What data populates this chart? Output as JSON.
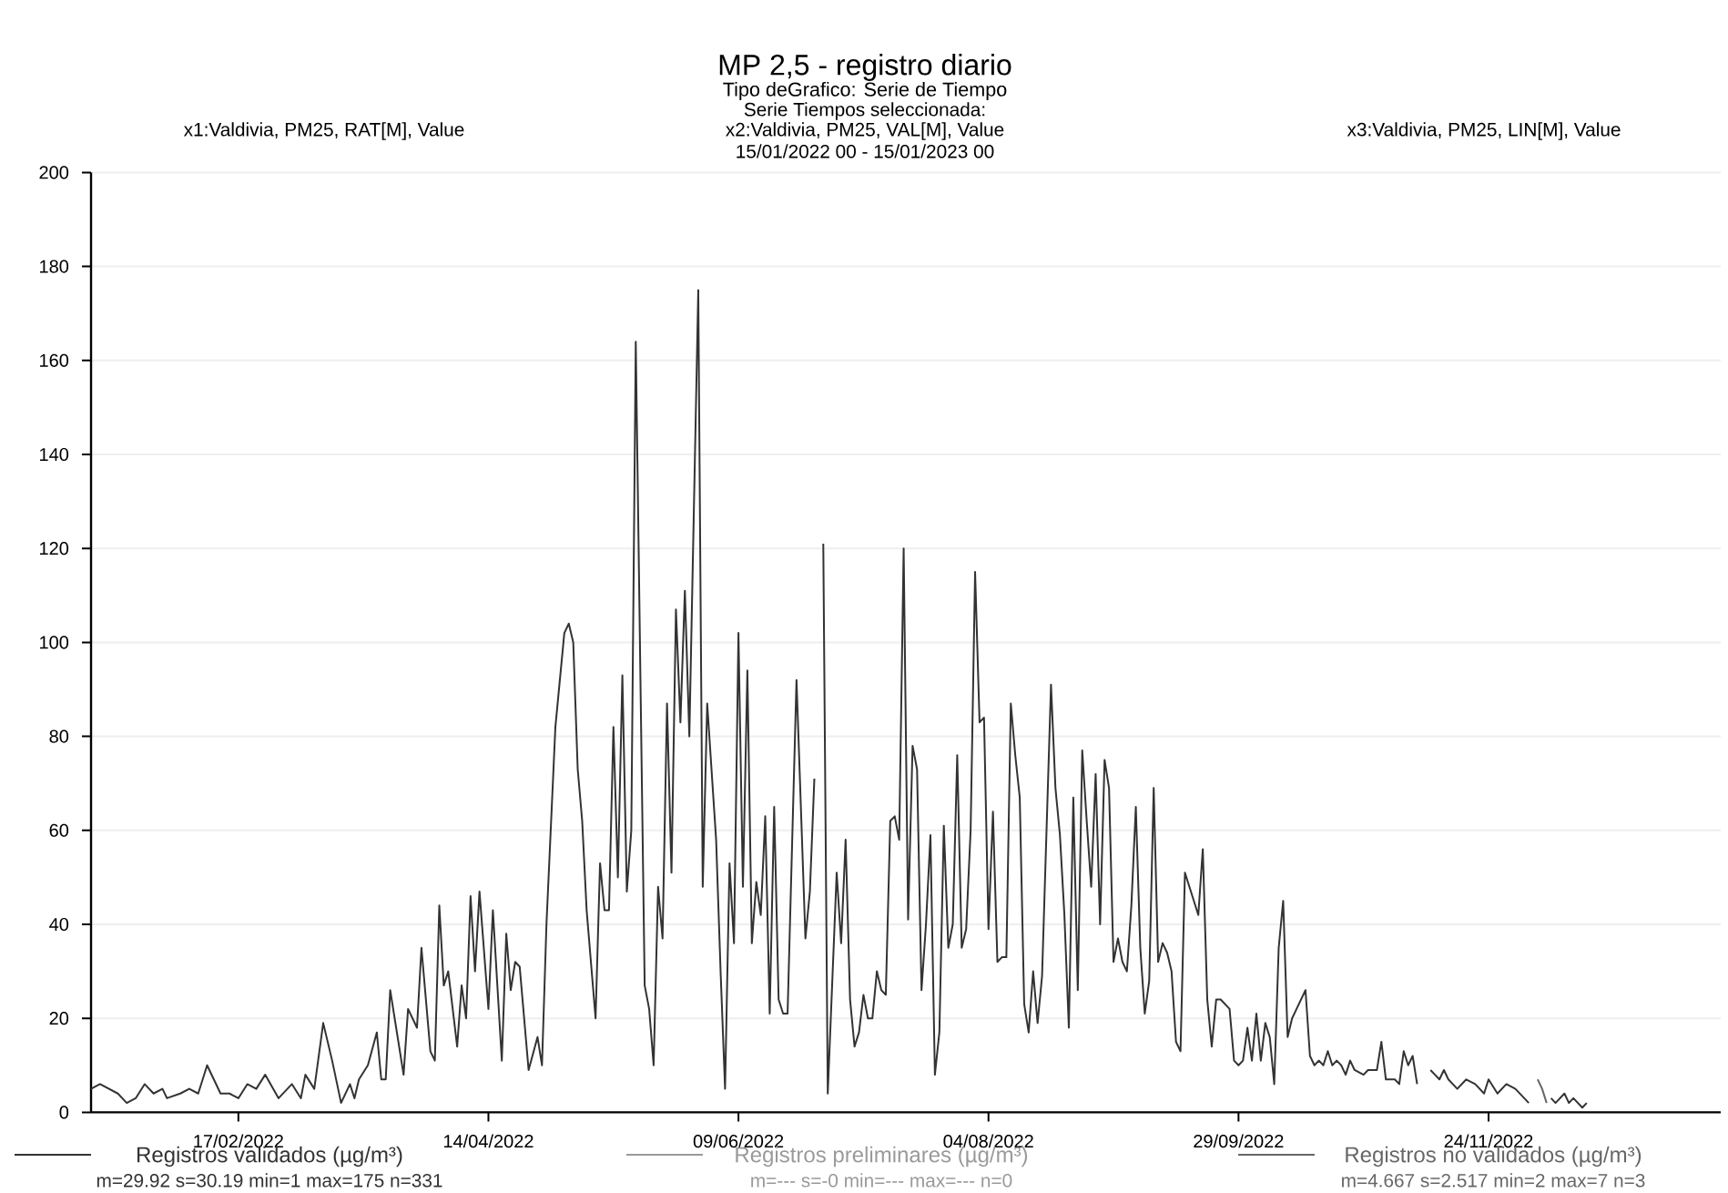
{
  "chart_data": {
    "type": "line",
    "title": "MP 2,5 - registro diario",
    "subtitle": "Tipo deGrafico: Serie de Tiempo",
    "annotations": [
      "Serie Tiempos seleccionada:",
      "x2:Valdivia, PM25, VAL[M], Value",
      "15/01/2022 00 - 15/01/2023 00",
      "x1:Valdivia, PM25, RAT[M], Value",
      "x3:Valdivia, PM25, LIN[M], Value",
      "m=29.92 s=30.19 min=1 max=175 n=331",
      "m=--- s=-0 min=--- max=--- n=0",
      "m=4.667 s=2.517 min=2 max=7 n=3"
    ],
    "xlim": [
      "2022-01-15",
      "2023-01-15"
    ],
    "xticks": [
      {
        "value": "2022-02-17",
        "label": "17/02/2022"
      },
      {
        "value": "2022-04-14",
        "label": "14/04/2022"
      },
      {
        "value": "2022-06-09",
        "label": "09/06/2022"
      },
      {
        "value": "2022-08-04",
        "label": "04/08/2022"
      },
      {
        "value": "2022-09-29",
        "label": "29/09/2022"
      },
      {
        "value": "2022-11-24",
        "label": "24/11/2022"
      }
    ],
    "ylim": [
      0,
      200
    ],
    "yticks": [
      0,
      20,
      40,
      60,
      80,
      100,
      120,
      140,
      160,
      180,
      200
    ],
    "grid": "y",
    "legend": "bottom",
    "series": [
      {
        "name": "Registros validados (µg/m³)",
        "color": "#333333",
        "x": [
          "2022-01-15",
          "2022-01-17",
          "2022-01-19",
          "2022-01-21",
          "2022-01-23",
          "2022-01-25",
          "2022-01-27",
          "2022-01-29",
          "2022-01-31",
          "2022-02-01",
          "2022-02-04",
          "2022-02-06",
          "2022-02-08",
          "2022-02-10",
          "2022-02-13",
          "2022-02-15",
          "2022-02-17",
          "2022-02-19",
          "2022-02-21",
          "2022-02-23",
          "2022-02-26",
          "2022-03-01",
          "2022-03-03",
          "2022-03-04",
          "2022-03-06",
          "2022-03-08",
          "2022-03-10",
          "2022-03-12",
          "2022-03-14",
          "2022-03-15",
          "2022-03-16",
          "2022-03-18",
          "2022-03-20",
          "2022-03-21",
          "2022-03-22",
          "2022-03-23",
          "2022-03-26",
          "2022-03-27",
          "2022-03-29",
          "2022-03-30",
          "2022-04-01",
          "2022-04-02",
          "2022-04-03",
          "2022-04-04",
          "2022-04-05",
          "2022-04-07",
          "2022-04-08",
          "2022-04-09",
          "2022-04-10",
          "2022-04-11",
          "2022-04-12",
          "2022-04-14",
          "2022-04-15",
          "2022-04-17",
          "2022-04-18",
          "2022-04-19",
          "2022-04-20",
          "2022-04-21",
          "2022-04-23",
          "2022-04-25",
          "2022-04-26",
          "2022-04-27",
          "2022-04-29",
          "2022-05-01",
          "2022-05-02",
          "2022-05-03",
          "2022-05-04",
          "2022-05-05",
          "2022-05-06",
          "2022-05-08",
          "2022-05-09",
          "2022-05-10",
          "2022-05-11",
          "2022-05-12",
          "2022-05-13",
          "2022-05-14",
          "2022-05-15",
          "2022-05-16",
          "2022-05-17",
          "2022-05-19",
          "2022-05-20",
          "2022-05-21",
          "2022-05-22",
          "2022-05-23",
          "2022-05-24",
          "2022-05-25",
          "2022-05-26",
          "2022-05-27",
          "2022-05-28",
          "2022-05-29",
          "2022-05-31",
          "2022-06-01",
          "2022-06-02",
          "2022-06-04",
          "2022-06-05",
          "2022-06-06",
          "2022-06-07",
          "2022-06-08",
          "2022-06-09",
          "2022-06-10",
          "2022-06-11",
          "2022-06-12",
          "2022-06-13",
          "2022-06-14",
          "2022-06-15",
          "2022-06-16",
          "2022-06-17",
          "2022-06-18",
          "2022-06-19",
          "2022-06-20",
          "2022-06-22",
          "2022-06-24",
          "2022-06-25",
          "2022-06-26",
          "2022-06-27",
          "2022-06-28",
          "2022-06-29",
          "2022-07-01",
          "2022-07-02",
          "2022-07-03",
          "2022-07-04",
          "2022-07-05",
          "2022-07-06",
          "2022-07-07",
          "2022-07-08",
          "2022-07-09",
          "2022-07-10",
          "2022-07-11",
          "2022-07-12",
          "2022-07-13",
          "2022-07-14",
          "2022-07-15",
          "2022-07-16",
          "2022-07-17",
          "2022-07-18",
          "2022-07-19",
          "2022-07-20",
          "2022-07-21",
          "2022-07-22",
          "2022-07-23",
          "2022-07-24",
          "2022-07-25",
          "2022-07-26",
          "2022-07-27",
          "2022-07-28",
          "2022-07-29",
          "2022-07-30",
          "2022-07-31",
          "2022-08-01",
          "2022-08-02",
          "2022-08-03",
          "2022-08-04",
          "2022-08-05",
          "2022-08-06",
          "2022-08-07",
          "2022-08-08",
          "2022-08-09",
          "2022-08-10",
          "2022-08-11",
          "2022-08-12",
          "2022-08-13",
          "2022-08-14",
          "2022-08-15",
          "2022-08-16",
          "2022-08-18",
          "2022-08-19",
          "2022-08-20",
          "2022-08-21",
          "2022-08-22",
          "2022-08-23",
          "2022-08-24",
          "2022-08-25",
          "2022-08-26",
          "2022-08-27",
          "2022-08-28",
          "2022-08-29",
          "2022-08-30",
          "2022-08-31",
          "2022-09-01",
          "2022-09-02",
          "2022-09-03",
          "2022-09-04",
          "2022-09-05",
          "2022-09-06",
          "2022-09-07",
          "2022-09-08",
          "2022-09-09",
          "2022-09-10",
          "2022-09-11",
          "2022-09-12",
          "2022-09-13",
          "2022-09-14",
          "2022-09-15",
          "2022-09-16",
          "2022-09-17",
          "2022-09-18",
          "2022-09-20",
          "2022-09-21",
          "2022-09-22",
          "2022-09-23",
          "2022-09-24",
          "2022-09-25",
          "2022-09-27",
          "2022-09-28",
          "2022-09-29",
          "2022-09-30",
          "2022-10-01",
          "2022-10-02",
          "2022-10-03",
          "2022-10-04",
          "2022-10-05",
          "2022-10-06",
          "2022-10-07",
          "2022-10-08",
          "2022-10-09",
          "2022-10-10",
          "2022-10-11",
          "2022-10-12",
          "2022-10-14",
          "2022-10-15",
          "2022-10-16",
          "2022-10-17",
          "2022-10-18",
          "2022-10-19",
          "2022-10-20",
          "2022-10-21",
          "2022-10-22",
          "2022-10-23",
          "2022-10-24",
          "2022-10-25",
          "2022-10-27",
          "2022-10-28",
          "2022-10-30",
          "2022-10-31",
          "2022-11-01",
          "2022-11-02",
          "2022-11-03",
          "2022-11-04",
          "2022-11-05",
          "2022-11-06",
          "2022-11-07",
          "2022-11-08",
          "2022-11-09",
          "2022-11-11",
          "2022-11-12",
          "2022-11-13",
          "2022-11-14",
          "2022-11-15",
          "2022-11-17",
          "2022-11-19",
          "2022-11-21",
          "2022-11-23",
          "2022-11-24",
          "2022-11-26",
          "2022-11-28",
          "2022-11-30",
          "2022-12-02",
          "2022-12-03",
          "2022-12-04",
          "2022-12-08",
          "2022-12-09",
          "2022-12-11",
          "2022-12-12",
          "2022-12-13",
          "2022-12-15",
          "2022-12-16"
        ],
        "values": [
          5,
          6,
          5,
          4,
          2,
          3,
          6,
          4,
          5,
          3,
          4,
          5,
          4,
          10,
          4,
          4,
          3,
          6,
          5,
          8,
          3,
          6,
          3,
          8,
          5,
          19,
          11,
          2,
          6,
          3,
          7,
          10,
          17,
          7,
          7,
          26,
          8,
          22,
          18,
          35,
          13,
          11,
          44,
          27,
          30,
          14,
          27,
          20,
          46,
          30,
          47,
          22,
          43,
          11,
          38,
          26,
          32,
          31,
          9,
          16,
          10,
          40,
          82,
          102,
          104,
          100,
          73,
          62,
          43,
          20,
          53,
          43,
          43,
          82,
          50,
          93,
          47,
          60,
          164,
          27,
          22,
          10,
          48,
          37,
          87,
          51,
          107,
          83,
          111,
          80,
          175,
          48,
          87,
          58,
          30,
          5,
          53,
          36,
          102,
          48,
          94,
          36,
          49,
          42,
          63,
          21,
          65,
          24,
          21,
          21,
          92,
          37,
          47,
          71,
          null,
          121,
          4,
          51,
          36,
          58,
          24,
          14,
          17,
          25,
          20,
          20,
          30,
          26,
          25,
          62,
          63,
          58,
          120,
          41,
          78,
          73,
          26,
          40,
          59,
          8,
          17,
          61,
          35,
          40,
          76,
          35,
          39,
          60,
          115,
          83,
          84,
          39,
          64,
          32,
          33,
          33,
          87,
          76,
          67,
          23,
          17,
          30,
          19,
          29,
          91,
          69,
          59,
          42,
          18,
          67,
          26,
          77,
          62,
          48,
          72,
          40,
          75,
          69,
          32,
          37,
          32,
          30,
          44,
          65,
          35,
          21,
          28,
          69,
          32,
          36,
          34,
          30,
          15,
          13,
          51,
          48,
          42,
          56,
          24,
          14,
          24,
          24,
          22,
          11,
          10,
          11,
          18,
          11,
          21,
          11,
          19,
          16,
          6,
          35,
          45,
          16,
          20,
          22,
          26,
          12,
          10,
          11,
          10,
          13,
          10,
          11,
          10,
          8,
          11,
          9,
          8,
          9,
          9,
          15,
          7,
          7,
          7,
          6,
          13,
          10,
          12,
          6,
          null,
          9,
          8,
          7,
          9,
          7,
          5,
          7,
          6,
          4,
          7,
          4,
          6,
          5,
          3,
          2,
          null,
          3,
          2,
          4,
          2,
          3,
          1,
          2
        ]
      },
      {
        "name": "Registros preliminares (µg/m³)",
        "color": "#999999"
      },
      {
        "name": "Registros no validados (µg/m³)",
        "color": "#666666",
        "x": [
          "2022-12-05",
          "2022-12-06",
          "2022-12-07"
        ],
        "values": [
          7,
          5,
          2
        ]
      }
    ]
  }
}
